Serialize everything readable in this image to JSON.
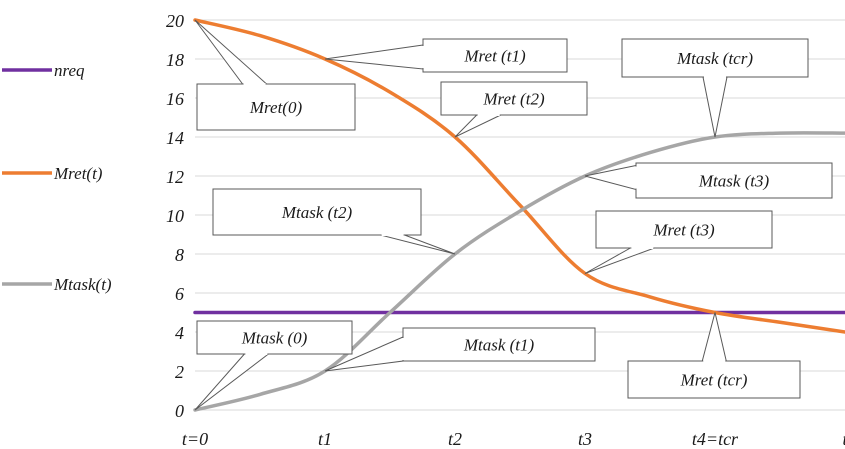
{
  "chart_data": {
    "type": "line",
    "title": "",
    "xlabel": "",
    "ylabel": "",
    "ylim": [
      0,
      20
    ],
    "yticks": [
      0,
      2,
      4,
      6,
      8,
      10,
      12,
      14,
      16,
      18,
      20
    ],
    "xtick_labels": [
      "t=0",
      "t1",
      "t2",
      "t3",
      "t4=tcr",
      "t"
    ],
    "grid": "horizontal",
    "legend_position": "left",
    "series": [
      {
        "name": "nreq",
        "color": "#7030a0",
        "x": [
          0,
          5
        ],
        "values": [
          5,
          5
        ]
      },
      {
        "name": "Mret(t)",
        "color": "#ed7d31",
        "x": [
          0,
          0.5,
          1,
          1.5,
          2,
          2.5,
          3,
          3.5,
          4,
          4.5,
          5
        ],
        "values": [
          20,
          19.2,
          18,
          16.3,
          14,
          10.5,
          7,
          5.8,
          5,
          4.5,
          4
        ]
      },
      {
        "name": "Mtask(t)",
        "color": "#a6a6a6",
        "x": [
          0,
          0.5,
          1,
          1.5,
          2,
          2.5,
          3,
          3.5,
          4,
          4.5,
          5
        ],
        "values": [
          0,
          0.8,
          2,
          5,
          8,
          10.2,
          12,
          13.2,
          14,
          14.2,
          14.2
        ]
      }
    ],
    "callouts": [
      {
        "text": "Mret(0)",
        "x": 0,
        "y": 20
      },
      {
        "text": "Mret (t1)",
        "x": 1,
        "y": 18
      },
      {
        "text": "Mret (t2)",
        "x": 2,
        "y": 14
      },
      {
        "text": "Mret (t3)",
        "x": 3,
        "y": 7
      },
      {
        "text": "Mret (tcr)",
        "x": 4,
        "y": 5
      },
      {
        "text": "Mtask (0)",
        "x": 0,
        "y": 0
      },
      {
        "text": "Mtask (t1)",
        "x": 1,
        "y": 2
      },
      {
        "text": "Mtask (t2)",
        "x": 2,
        "y": 8
      },
      {
        "text": "Mtask (t3)",
        "x": 3,
        "y": 12
      },
      {
        "text": "Mtask (tcr)",
        "x": 4,
        "y": 14
      }
    ]
  }
}
